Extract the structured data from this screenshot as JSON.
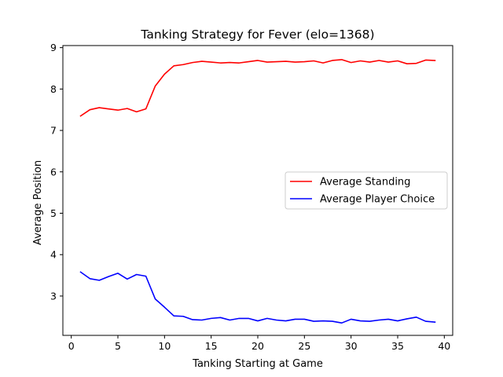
{
  "chart_data": {
    "type": "line",
    "title": "Tanking Strategy for Fever (elo=1368)",
    "xlabel": "Tanking Starting at Game",
    "ylabel": "Average Position",
    "xlim": [
      -0.9,
      40.9
    ],
    "ylim": [
      2.05,
      9.05
    ],
    "xticks": [
      0,
      5,
      10,
      15,
      20,
      25,
      30,
      35,
      40
    ],
    "yticks": [
      3,
      4,
      5,
      6,
      7,
      8,
      9
    ],
    "grid": false,
    "legend_position": "center-right",
    "x": [
      1,
      2,
      3,
      4,
      5,
      6,
      7,
      8,
      9,
      10,
      11,
      12,
      13,
      14,
      15,
      16,
      17,
      18,
      19,
      20,
      21,
      22,
      23,
      24,
      25,
      26,
      27,
      28,
      29,
      30,
      31,
      32,
      33,
      34,
      35,
      36,
      37,
      38,
      39
    ],
    "series": [
      {
        "name": "Average Standing",
        "color": "#ff0000",
        "values": [
          7.35,
          7.5,
          7.55,
          7.52,
          7.49,
          7.53,
          7.45,
          7.52,
          8.07,
          8.36,
          8.56,
          8.59,
          8.64,
          8.67,
          8.65,
          8.63,
          8.64,
          8.63,
          8.66,
          8.69,
          8.65,
          8.66,
          8.67,
          8.65,
          8.66,
          8.68,
          8.63,
          8.69,
          8.71,
          8.64,
          8.68,
          8.65,
          8.69,
          8.65,
          8.68,
          8.61,
          8.62,
          8.7,
          8.69
        ]
      },
      {
        "name": "Average Player Choice",
        "color": "#0000ff",
        "values": [
          3.58,
          3.42,
          3.38,
          3.47,
          3.55,
          3.41,
          3.52,
          3.48,
          2.93,
          2.73,
          2.52,
          2.51,
          2.43,
          2.42,
          2.46,
          2.48,
          2.42,
          2.46,
          2.46,
          2.4,
          2.46,
          2.42,
          2.4,
          2.44,
          2.44,
          2.39,
          2.4,
          2.39,
          2.35,
          2.44,
          2.4,
          2.39,
          2.42,
          2.44,
          2.4,
          2.45,
          2.49,
          2.39,
          2.37
        ]
      }
    ]
  }
}
